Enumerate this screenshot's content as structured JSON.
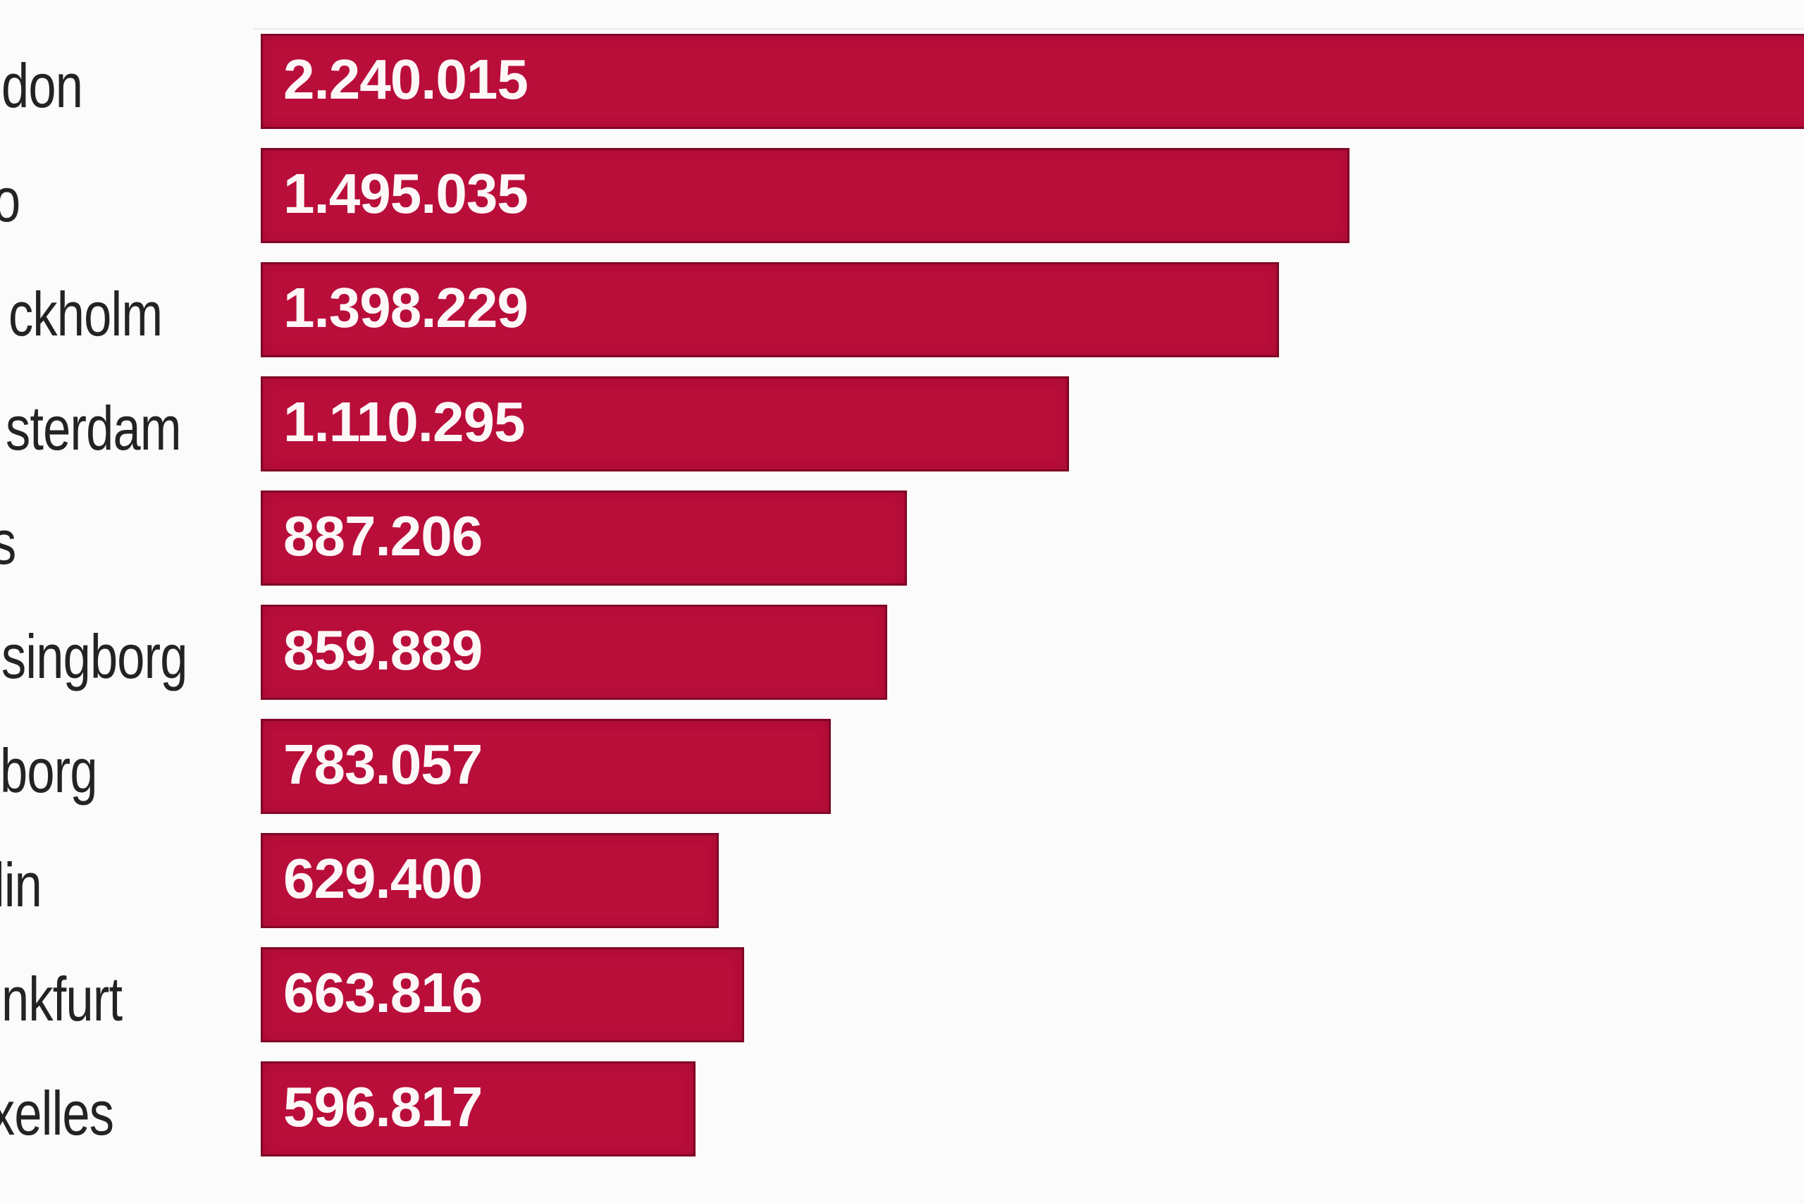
{
  "chart_data": {
    "type": "bar",
    "orientation": "horizontal",
    "title": "",
    "xlabel": "",
    "ylabel": "",
    "grid": false,
    "legend": false,
    "bar_color": "#b90d3a",
    "value_label_color": "#ffffff",
    "category_label_color": "#232323",
    "note_labels_cropped": "category labels are cut off at the left image edge; first bar is cut off at the right image edge",
    "categories_visible_fragments": [
      "don",
      "o",
      "ckholm",
      "sterdam",
      "s",
      "singborg",
      "borg",
      "lin",
      "nkfurt",
      "xelles"
    ],
    "values": [
      2240015,
      1495035,
      1398229,
      1110295,
      887206,
      859889,
      783057,
      629400,
      663816,
      596817
    ],
    "rows": [
      {
        "label_fragment": "don",
        "value_label": "2.240.015",
        "value": 2240015
      },
      {
        "label_fragment": "o",
        "value_label": "1.495.035",
        "value": 1495035
      },
      {
        "label_fragment": "ckholm",
        "value_label": "1.398.229",
        "value": 1398229
      },
      {
        "label_fragment": "sterdam",
        "value_label": "1.110.295",
        "value": 1110295
      },
      {
        "label_fragment": "s",
        "value_label": "887.206",
        "value": 887206
      },
      {
        "label_fragment": "singborg",
        "value_label": "859.889",
        "value": 859889
      },
      {
        "label_fragment": "borg",
        "value_label": "783.057",
        "value": 783057
      },
      {
        "label_fragment": "lin",
        "value_label": "629.400",
        "value": 629400
      },
      {
        "label_fragment": "nkfurt",
        "value_label": "663.816",
        "value": 663816
      },
      {
        "label_fragment": "xelles",
        "value_label": "596.817",
        "value": 596817
      }
    ]
  }
}
